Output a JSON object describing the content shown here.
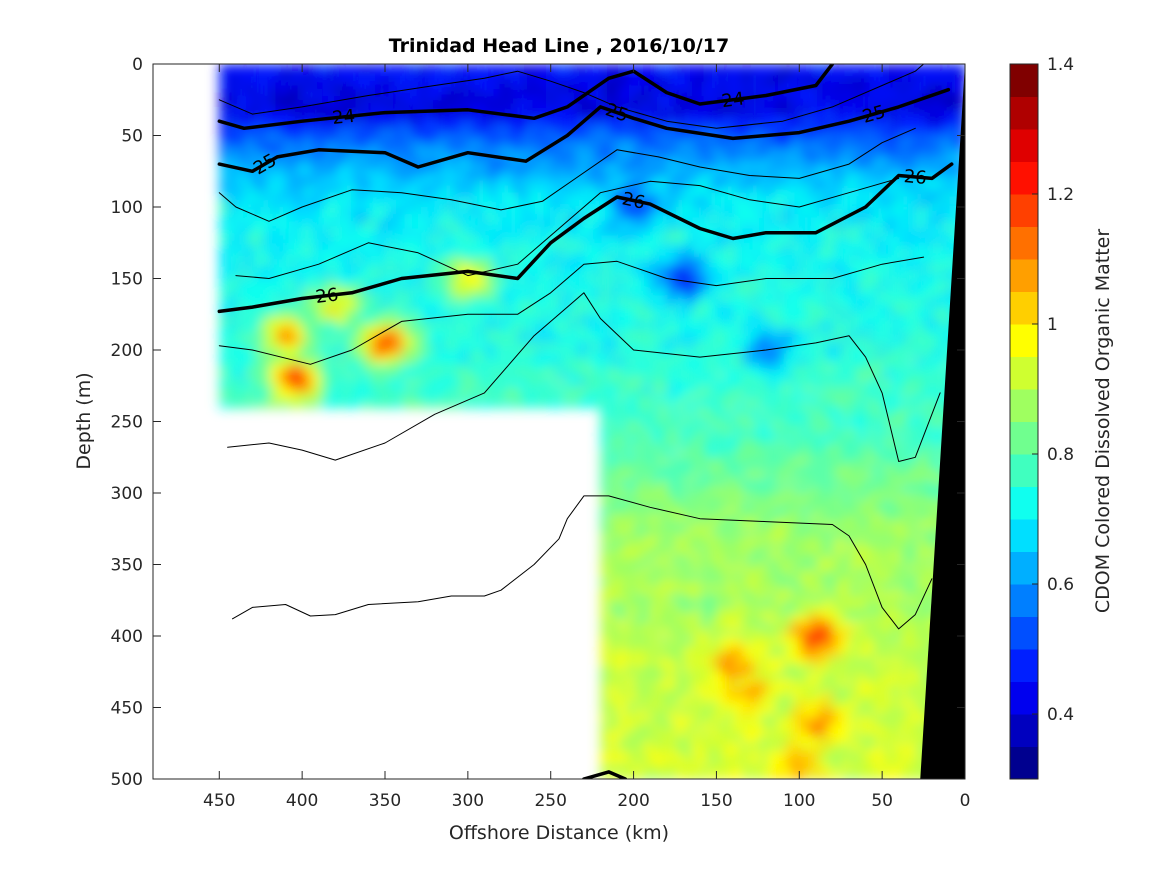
{
  "chart_data": {
    "type": "heatmap",
    "title": "Trinidad Head Line , 2016/10/17",
    "xlabel": "Offshore Distance (km)",
    "ylabel": "Depth (m)",
    "colorbar_label": "CDOM Colored Dissolved Organic Matter",
    "xlim": [
      490,
      0
    ],
    "x_reversed": true,
    "ylim": [
      500,
      0
    ],
    "y_reversed": true,
    "x_ticks": [
      450,
      400,
      350,
      300,
      250,
      200,
      150,
      100,
      50,
      0
    ],
    "y_ticks": [
      0,
      50,
      100,
      150,
      200,
      250,
      300,
      350,
      400,
      450,
      500
    ],
    "colorbar_range": [
      0.3,
      1.4
    ],
    "colorbar_ticks": [
      0.4,
      0.6,
      0.8,
      1,
      1.2,
      1.4
    ],
    "colormap": [
      "#00008f",
      "#0000bf",
      "#0000ef",
      "#001fff",
      "#004fff",
      "#007fff",
      "#00afff",
      "#00dfff",
      "#10ffef",
      "#40ffbf",
      "#70ff8f",
      "#9fff60",
      "#cfff30",
      "#ffff00",
      "#ffcf00",
      "#ff9f00",
      "#ff7000",
      "#ff4000",
      "#ff1000",
      "#df0000",
      "#af0000",
      "#800000"
    ],
    "field_regions": [
      {
        "name": "inner",
        "x": [
          220,
          0
        ],
        "depth": [
          0,
          500
        ]
      },
      {
        "name": "offshore",
        "x": [
          450,
          220
        ],
        "depth": [
          0,
          240
        ]
      }
    ],
    "field_profile": [
      {
        "depth": 0,
        "value": 0.45
      },
      {
        "depth": 30,
        "value": 0.4
      },
      {
        "depth": 60,
        "value": 0.58
      },
      {
        "depth": 100,
        "value": 0.7
      },
      {
        "depth": 150,
        "value": 0.72
      },
      {
        "depth": 200,
        "value": 0.74
      },
      {
        "depth": 260,
        "value": 0.78
      },
      {
        "depth": 320,
        "value": 0.86
      },
      {
        "depth": 400,
        "value": 0.9
      },
      {
        "depth": 500,
        "value": 0.93
      }
    ],
    "field_hotspots": [
      {
        "x": 350,
        "depth": 195,
        "value": 1.2
      },
      {
        "x": 405,
        "depth": 220,
        "value": 1.2
      },
      {
        "x": 410,
        "depth": 190,
        "value": 1.1
      },
      {
        "x": 380,
        "depth": 170,
        "value": 1.0
      },
      {
        "x": 300,
        "depth": 150,
        "value": 1.0
      },
      {
        "x": 90,
        "depth": 400,
        "value": 1.2
      },
      {
        "x": 140,
        "depth": 420,
        "value": 1.1
      },
      {
        "x": 90,
        "depth": 460,
        "value": 1.1
      },
      {
        "x": 130,
        "depth": 440,
        "value": 1.05
      },
      {
        "x": 100,
        "depth": 490,
        "value": 1.05
      },
      {
        "x": 170,
        "depth": 150,
        "value": 0.45
      },
      {
        "x": 120,
        "depth": 200,
        "value": 0.55
      },
      {
        "x": 200,
        "depth": 100,
        "value": 0.5
      }
    ],
    "bathymetry": [
      {
        "x": 0,
        "depth": 0
      },
      {
        "x": 27,
        "depth": 500
      }
    ],
    "isopycnals": [
      {
        "level": 24,
        "bold": true,
        "label": "24",
        "points": [
          [
            450,
            40
          ],
          [
            435,
            45
          ],
          [
            400,
            40
          ],
          [
            350,
            34
          ],
          [
            300,
            32
          ],
          [
            260,
            38
          ],
          [
            240,
            30
          ],
          [
            215,
            10
          ],
          [
            200,
            5
          ],
          [
            180,
            20
          ],
          [
            160,
            28
          ],
          [
            120,
            22
          ],
          [
            90,
            15
          ],
          [
            80,
            0
          ]
        ]
      },
      {
        "level": 25,
        "bold": true,
        "label": "25",
        "points": [
          [
            450,
            70
          ],
          [
            430,
            75
          ],
          [
            415,
            65
          ],
          [
            390,
            60
          ],
          [
            350,
            62
          ],
          [
            330,
            72
          ],
          [
            300,
            62
          ],
          [
            265,
            68
          ],
          [
            240,
            50
          ],
          [
            220,
            30
          ],
          [
            200,
            38
          ],
          [
            180,
            45
          ],
          [
            140,
            52
          ],
          [
            100,
            48
          ],
          [
            70,
            40
          ],
          [
            40,
            30
          ],
          [
            10,
            18
          ]
        ]
      },
      {
        "level": 26,
        "bold": true,
        "label": "26",
        "points": [
          [
            450,
            173
          ],
          [
            430,
            170
          ],
          [
            400,
            164
          ],
          [
            370,
            160
          ],
          [
            340,
            150
          ],
          [
            300,
            145
          ],
          [
            270,
            150
          ],
          [
            250,
            125
          ],
          [
            230,
            108
          ],
          [
            210,
            93
          ],
          [
            190,
            98
          ],
          [
            160,
            115
          ],
          [
            140,
            122
          ],
          [
            120,
            118
          ],
          [
            90,
            118
          ],
          [
            60,
            100
          ],
          [
            40,
            78
          ],
          [
            20,
            80
          ],
          [
            8,
            70
          ]
        ]
      },
      {
        "level": 26,
        "bold": true,
        "label": "",
        "points": [
          [
            230,
            500
          ],
          [
            215,
            495
          ],
          [
            205,
            500
          ]
        ]
      },
      {
        "level": 24.5,
        "bold": false,
        "label": "",
        "points": [
          [
            450,
            25
          ],
          [
            430,
            35
          ],
          [
            400,
            30
          ],
          [
            360,
            22
          ],
          [
            320,
            15
          ],
          [
            290,
            10
          ],
          [
            270,
            5
          ],
          [
            250,
            12
          ],
          [
            230,
            20
          ],
          [
            210,
            30
          ],
          [
            180,
            40
          ],
          [
            150,
            45
          ],
          [
            110,
            40
          ],
          [
            80,
            30
          ],
          [
            50,
            15
          ],
          [
            30,
            5
          ],
          [
            25,
            0
          ]
        ]
      },
      {
        "level": 25.5,
        "bold": false,
        "label": "",
        "points": [
          [
            450,
            90
          ],
          [
            440,
            100
          ],
          [
            420,
            110
          ],
          [
            400,
            100
          ],
          [
            370,
            88
          ],
          [
            340,
            90
          ],
          [
            310,
            95
          ],
          [
            280,
            102
          ],
          [
            255,
            96
          ],
          [
            235,
            80
          ],
          [
            210,
            60
          ],
          [
            185,
            65
          ],
          [
            160,
            72
          ],
          [
            130,
            78
          ],
          [
            100,
            80
          ],
          [
            70,
            70
          ],
          [
            50,
            55
          ],
          [
            30,
            45
          ]
        ]
      },
      {
        "level": 25.8,
        "bold": false,
        "label": "",
        "points": [
          [
            440,
            148
          ],
          [
            420,
            150
          ],
          [
            390,
            140
          ],
          [
            360,
            125
          ],
          [
            330,
            132
          ],
          [
            300,
            148
          ],
          [
            270,
            140
          ],
          [
            250,
            120
          ],
          [
            220,
            90
          ],
          [
            190,
            82
          ],
          [
            160,
            85
          ],
          [
            130,
            95
          ],
          [
            100,
            100
          ],
          [
            70,
            90
          ],
          [
            40,
            80
          ]
        ]
      },
      {
        "level": 26.3,
        "bold": false,
        "label": "",
        "points": [
          [
            450,
            197
          ],
          [
            430,
            200
          ],
          [
            395,
            210
          ],
          [
            370,
            200
          ],
          [
            340,
            180
          ],
          [
            300,
            175
          ],
          [
            270,
            175
          ],
          [
            250,
            160
          ],
          [
            230,
            140
          ],
          [
            210,
            138
          ],
          [
            180,
            150
          ],
          [
            150,
            155
          ],
          [
            120,
            150
          ],
          [
            80,
            150
          ],
          [
            50,
            140
          ],
          [
            25,
            135
          ]
        ]
      },
      {
        "level": 26.5,
        "bold": false,
        "label": "",
        "points": [
          [
            445,
            268
          ],
          [
            420,
            265
          ],
          [
            400,
            270
          ],
          [
            380,
            277
          ],
          [
            350,
            265
          ],
          [
            320,
            245
          ],
          [
            290,
            230
          ],
          [
            260,
            190
          ],
          [
            240,
            170
          ],
          [
            230,
            160
          ],
          [
            220,
            178
          ],
          [
            200,
            200
          ],
          [
            160,
            205
          ],
          [
            120,
            200
          ],
          [
            90,
            195
          ],
          [
            70,
            190
          ],
          [
            60,
            205
          ],
          [
            50,
            230
          ],
          [
            40,
            278
          ],
          [
            30,
            275
          ],
          [
            25,
            260
          ],
          [
            15,
            230
          ]
        ]
      },
      {
        "level": 26.7,
        "bold": false,
        "label": "",
        "points": [
          [
            442,
            388
          ],
          [
            430,
            380
          ],
          [
            410,
            378
          ],
          [
            395,
            386
          ],
          [
            380,
            385
          ],
          [
            360,
            378
          ],
          [
            330,
            376
          ],
          [
            310,
            372
          ],
          [
            290,
            372
          ],
          [
            280,
            368
          ],
          [
            260,
            350
          ],
          [
            245,
            332
          ],
          [
            240,
            318
          ],
          [
            230,
            302
          ],
          [
            215,
            302
          ],
          [
            190,
            310
          ],
          [
            160,
            318
          ],
          [
            120,
            320
          ],
          [
            80,
            322
          ],
          [
            70,
            330
          ],
          [
            60,
            350
          ],
          [
            50,
            380
          ],
          [
            40,
            395
          ],
          [
            30,
            385
          ],
          [
            20,
            360
          ]
        ]
      }
    ]
  }
}
